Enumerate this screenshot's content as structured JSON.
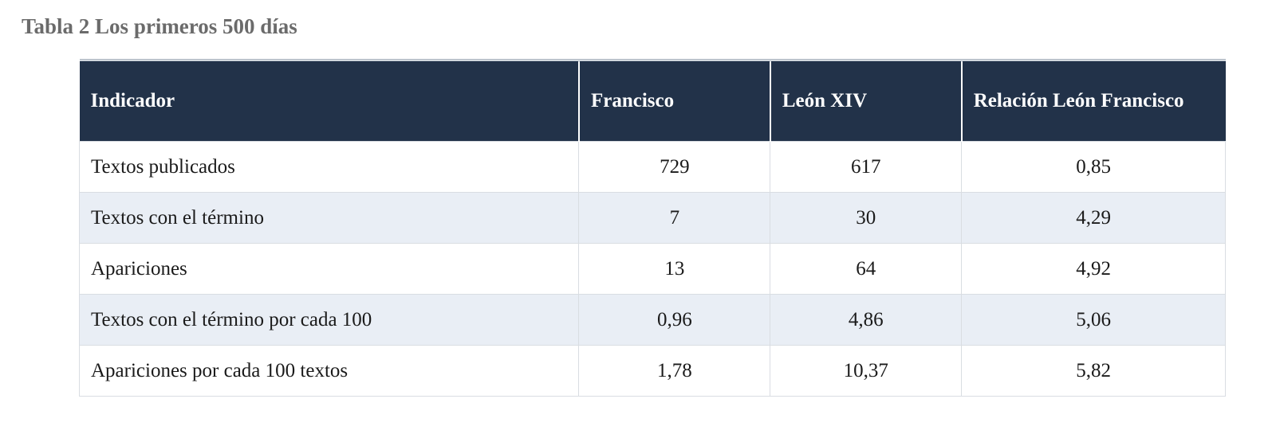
{
  "title": "Tabla 2 Los primeros 500 días",
  "table": {
    "header": [
      "Indicador",
      "Francisco",
      "León XIV",
      "Relación León Francisco"
    ],
    "rows": [
      [
        "Textos publicados",
        "729",
        "617",
        "0,85"
      ],
      [
        "Textos con el término",
        "7",
        "30",
        "4,29"
      ],
      [
        "Apariciones",
        "13",
        "64",
        "4,92"
      ],
      [
        "Textos con el término por cada 100",
        "0,96",
        "4,86",
        "5,06"
      ],
      [
        "Apariciones por cada 100 textos",
        "1,78",
        "10,37",
        "5,82"
      ]
    ]
  }
}
